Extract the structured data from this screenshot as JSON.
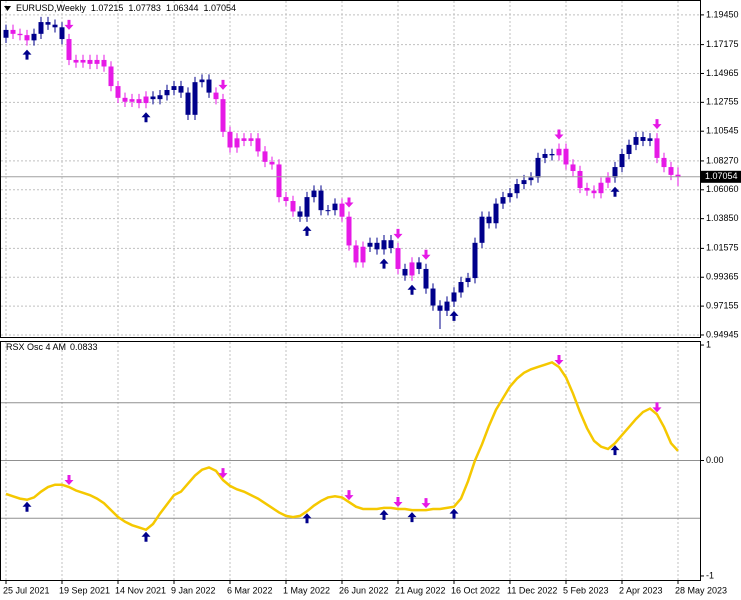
{
  "chart_data": [
    {
      "type": "candlestick",
      "title": "EURUSD,Weekly",
      "open": [
        1.177,
        1.183,
        1.18,
        1.179,
        1.175,
        1.18,
        1.189,
        1.187,
        1.185,
        1.176,
        1.16,
        1.158,
        1.16,
        1.157,
        1.16,
        1.155,
        1.14,
        1.131,
        1.128,
        1.13,
        1.127,
        1.132,
        1.13,
        1.133,
        1.137,
        1.14,
        1.135,
        1.118,
        1.143,
        1.145,
        1.135,
        1.13,
        1.105,
        1.093,
        1.1,
        1.098,
        1.1,
        1.09,
        1.082,
        1.08,
        1.055,
        1.052,
        1.044,
        1.04,
        1.055,
        1.06,
        1.045,
        1.045,
        1.05,
        1.04,
        1.018,
        1.005,
        1.017,
        1.02,
        1.015,
        1.022,
        1.016,
        1.0,
        0.995,
        1.005,
        1.0,
        0.985,
        0.972,
        0.968,
        0.975,
        0.982,
        0.99,
        0.993,
        1.02,
        1.04,
        1.035,
        1.05,
        1.055,
        1.058,
        1.065,
        1.068,
        1.07,
        1.085,
        1.088,
        1.087,
        1.092,
        1.08,
        1.075,
        1.062,
        1.06,
        1.058,
        1.066,
        1.07,
        1.078,
        1.088,
        1.095,
        1.101,
        1.098,
        1.1,
        1.085,
        1.078,
        1.07215
      ],
      "high": [
        1.187,
        1.187,
        1.184,
        1.183,
        1.184,
        1.193,
        1.193,
        1.191,
        1.189,
        1.18,
        1.164,
        1.164,
        1.164,
        1.164,
        1.164,
        1.159,
        1.144,
        1.135,
        1.134,
        1.134,
        1.136,
        1.136,
        1.137,
        1.141,
        1.144,
        1.144,
        1.139,
        1.147,
        1.149,
        1.149,
        1.139,
        1.134,
        1.109,
        1.104,
        1.104,
        1.104,
        1.104,
        1.094,
        1.086,
        1.084,
        1.059,
        1.056,
        1.048,
        1.059,
        1.064,
        1.064,
        1.049,
        1.054,
        1.054,
        1.044,
        1.022,
        1.021,
        1.024,
        1.024,
        1.026,
        1.026,
        1.02,
        1.004,
        1.009,
        1.009,
        1.004,
        0.989,
        0.976,
        0.979,
        0.986,
        0.994,
        0.997,
        1.024,
        1.044,
        1.044,
        1.054,
        1.059,
        1.062,
        1.069,
        1.072,
        1.074,
        1.089,
        1.092,
        1.092,
        1.096,
        1.096,
        1.084,
        1.079,
        1.066,
        1.064,
        1.07,
        1.074,
        1.082,
        1.092,
        1.099,
        1.105,
        1.105,
        1.104,
        1.104,
        1.089,
        1.082,
        1.07783
      ],
      "low": [
        1.173,
        1.176,
        1.175,
        1.171,
        1.171,
        1.176,
        1.183,
        1.181,
        1.172,
        1.156,
        1.154,
        1.154,
        1.153,
        1.153,
        1.151,
        1.136,
        1.127,
        1.124,
        1.124,
        1.123,
        1.123,
        1.126,
        1.126,
        1.129,
        1.133,
        1.131,
        1.114,
        1.114,
        1.139,
        1.131,
        1.126,
        1.101,
        1.089,
        1.089,
        1.094,
        1.094,
        1.086,
        1.078,
        1.076,
        1.051,
        1.048,
        1.04,
        1.036,
        1.036,
        1.051,
        1.041,
        1.041,
        1.041,
        1.036,
        1.014,
        1.001,
        1.001,
        1.013,
        1.011,
        1.011,
        1.012,
        0.996,
        0.991,
        0.991,
        0.996,
        0.981,
        0.968,
        0.954,
        0.964,
        0.971,
        0.978,
        0.986,
        0.989,
        1.016,
        1.031,
        1.031,
        1.046,
        1.051,
        1.054,
        1.061,
        1.064,
        1.066,
        1.081,
        1.083,
        1.083,
        1.076,
        1.071,
        1.058,
        1.056,
        1.054,
        1.054,
        1.062,
        1.066,
        1.074,
        1.084,
        1.091,
        1.094,
        1.094,
        1.081,
        1.074,
        1.068,
        1.06344
      ],
      "close": [
        1.183,
        1.18,
        1.179,
        1.175,
        1.18,
        1.189,
        1.187,
        1.185,
        1.176,
        1.16,
        1.158,
        1.16,
        1.157,
        1.16,
        1.155,
        1.14,
        1.131,
        1.128,
        1.13,
        1.127,
        1.132,
        1.13,
        1.133,
        1.137,
        1.14,
        1.135,
        1.118,
        1.143,
        1.145,
        1.135,
        1.13,
        1.105,
        1.093,
        1.1,
        1.098,
        1.1,
        1.09,
        1.082,
        1.08,
        1.055,
        1.052,
        1.044,
        1.04,
        1.055,
        1.06,
        1.045,
        1.045,
        1.05,
        1.04,
        1.018,
        1.005,
        1.017,
        1.02,
        1.015,
        1.022,
        1.016,
        1.0,
        0.995,
        1.005,
        1.0,
        0.985,
        0.972,
        0.968,
        0.975,
        0.982,
        0.99,
        0.993,
        1.02,
        1.04,
        1.035,
        1.05,
        1.055,
        1.058,
        1.065,
        1.068,
        1.07,
        1.085,
        1.088,
        1.087,
        1.092,
        1.08,
        1.075,
        1.062,
        1.06,
        1.058,
        1.066,
        1.07,
        1.078,
        1.088,
        1.095,
        1.101,
        1.098,
        1.1,
        1.085,
        1.078,
        1.072,
        1.07054
      ],
      "ylim": [
        0.9479,
        1.2059
      ],
      "yticks": [
        {
          "value": 1.1945,
          "label": "1.19450"
        },
        {
          "value": 1.17175,
          "label": "1.17175"
        },
        {
          "value": 1.14965,
          "label": "1.14965"
        },
        {
          "value": 1.12755,
          "label": "1.12755"
        },
        {
          "value": 1.10545,
          "label": "1.10545"
        },
        {
          "value": 1.0827,
          "label": "1.08270"
        },
        {
          "value": 1.0606,
          "label": "1.06060"
        },
        {
          "value": 1.0385,
          "label": "1.03850"
        },
        {
          "value": 1.01575,
          "label": "1.01575"
        },
        {
          "value": 0.99365,
          "label": "0.99365"
        },
        {
          "value": 0.97155,
          "label": "0.97155"
        },
        {
          "value": 0.94945,
          "label": "0.94945"
        }
      ],
      "rising_color": "#00008b",
      "falling_color": "#e619e6",
      "grid": true
    },
    {
      "type": "line",
      "title": "RSX Osc 4 AM",
      "categories": [
        "25 Jul 2021",
        null,
        null,
        null,
        null,
        null,
        null,
        null,
        "19 Sep 2021",
        null,
        null,
        null,
        null,
        null,
        null,
        null,
        "14 Nov 2021",
        null,
        null,
        null,
        null,
        null,
        null,
        null,
        "9 Jan 2022",
        null,
        null,
        null,
        null,
        null,
        null,
        null,
        "6 Mar 2022",
        null,
        null,
        null,
        null,
        null,
        null,
        null,
        "1 May 2022",
        null,
        null,
        null,
        null,
        null,
        null,
        null,
        "26 Jun 2022",
        null,
        null,
        null,
        null,
        null,
        null,
        null,
        "21 Aug 2022",
        null,
        null,
        null,
        null,
        null,
        null,
        null,
        "16 Oct 2022",
        null,
        null,
        null,
        null,
        null,
        null,
        null,
        "11 Dec 2022",
        null,
        null,
        null,
        null,
        null,
        null,
        null,
        "5 Feb 2023",
        null,
        null,
        null,
        null,
        null,
        null,
        null,
        "2 Apr 2023",
        null,
        null,
        null,
        null,
        null,
        null,
        null,
        "28 May 2023"
      ],
      "values": [
        -0.29,
        -0.31,
        -0.33,
        -0.34,
        -0.32,
        -0.27,
        -0.23,
        -0.21,
        -0.21,
        -0.23,
        -0.26,
        -0.28,
        -0.3,
        -0.33,
        -0.37,
        -0.43,
        -0.49,
        -0.53,
        -0.56,
        -0.58,
        -0.6,
        -0.55,
        -0.46,
        -0.38,
        -0.3,
        -0.27,
        -0.2,
        -0.13,
        -0.08,
        -0.06,
        -0.09,
        -0.17,
        -0.22,
        -0.25,
        -0.27,
        -0.3,
        -0.33,
        -0.37,
        -0.41,
        -0.45,
        -0.48,
        -0.49,
        -0.48,
        -0.44,
        -0.39,
        -0.35,
        -0.32,
        -0.31,
        -0.32,
        -0.36,
        -0.4,
        -0.42,
        -0.42,
        -0.42,
        -0.41,
        -0.41,
        -0.42,
        -0.42,
        -0.43,
        -0.43,
        -0.43,
        -0.42,
        -0.42,
        -0.41,
        -0.4,
        -0.33,
        -0.18,
        0.0,
        0.14,
        0.3,
        0.44,
        0.54,
        0.64,
        0.71,
        0.76,
        0.79,
        0.81,
        0.83,
        0.85,
        0.81,
        0.72,
        0.58,
        0.42,
        0.28,
        0.17,
        0.12,
        0.1,
        0.15,
        0.22,
        0.29,
        0.36,
        0.42,
        0.45,
        0.4,
        0.29,
        0.15,
        0.0833
      ],
      "color": "#f5c800",
      "ylim": [
        -1.035,
        1.035
      ],
      "yticks": [
        1,
        {
          "value": 0,
          "label": "0.00"
        },
        -1
      ],
      "levels": [
        0.5,
        0,
        -0.5
      ],
      "buy_signals": [
        3,
        20,
        43,
        54,
        58,
        64,
        87
      ],
      "sell_signals": [
        9,
        31,
        49,
        56,
        60,
        79,
        93
      ],
      "buy_color": "#00008b",
      "sell_color": "#e619e6",
      "grid": true
    }
  ]
}
